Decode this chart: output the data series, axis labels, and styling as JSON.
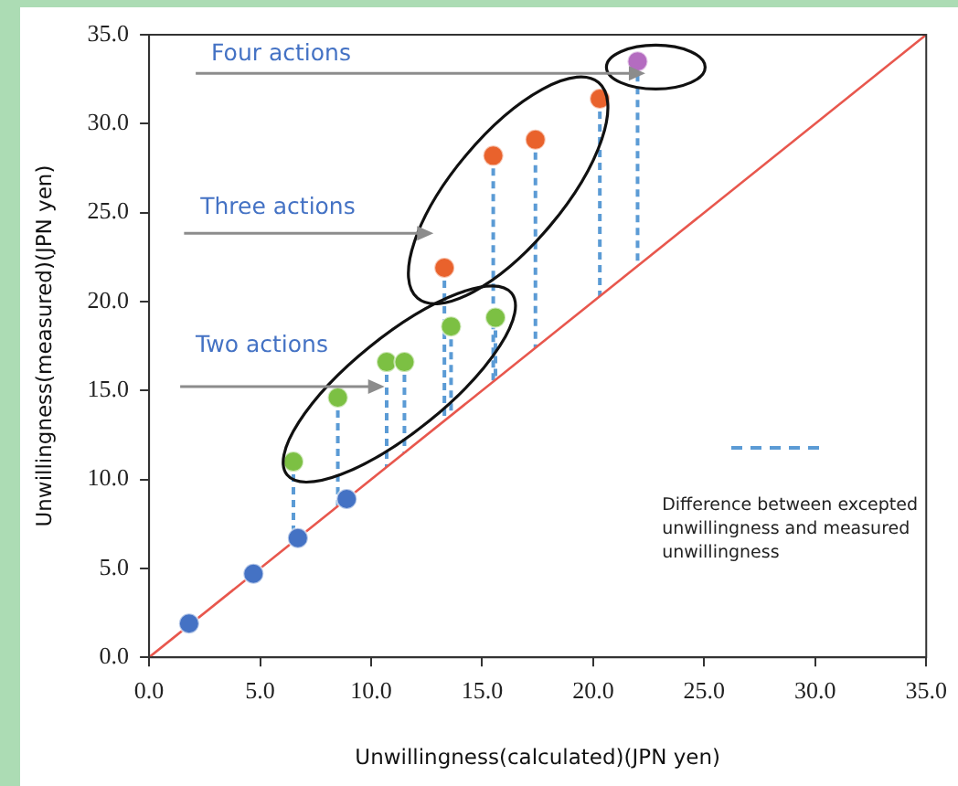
{
  "chart_data": {
    "type": "scatter",
    "xlabel": "Unwillingness(calculated)(JPN yen)",
    "ylabel": "Unwillingness(measured)(JPN yen)",
    "xlim": [
      0,
      35
    ],
    "xticks": [
      {
        "value": 0,
        "label": "0.0"
      },
      {
        "value": 5,
        "label": "5.0"
      },
      {
        "value": 10,
        "label": "10.0"
      },
      {
        "value": 15,
        "label": "15.0"
      },
      {
        "value": 20,
        "label": "20.0"
      },
      {
        "value": 25,
        "label": "25.0"
      },
      {
        "value": 30,
        "label": "30.0"
      },
      {
        "value": 35,
        "label": "35.0"
      }
    ],
    "ylim": [
      0,
      35
    ],
    "yticks": [
      {
        "value": 0,
        "label": "0.0"
      },
      {
        "value": 5,
        "label": "5.0"
      },
      {
        "value": 10,
        "label": "10.0"
      },
      {
        "value": 15,
        "label": "15.0"
      },
      {
        "value": 20,
        "label": "20.0"
      },
      {
        "value": 25,
        "label": "25.0"
      },
      {
        "value": 30,
        "label": "30.0"
      },
      {
        "value": 35,
        "label": "35.0"
      }
    ],
    "grid": false,
    "legend": "right",
    "marker": "circle",
    "annotations": [
      "Four actions",
      "Three actions",
      "Two actions"
    ],
    "series": [
      {
        "type": "line",
        "marker": "none",
        "color": "#e8574d",
        "x": [
          0,
          35
        ],
        "values": [
          0,
          35
        ]
      },
      {
        "type": "line",
        "marker": "none",
        "line_style": "dashed",
        "name": "Difference between excepted unwillingness and measured unwillingness",
        "color": "#5b9bd5",
        "x": [
          6.5,
          6.5
        ],
        "values": [
          11.0,
          6.5
        ]
      },
      {
        "type": "line",
        "marker": "none",
        "line_style": "dashed",
        "color": "#5b9bd5",
        "x": [
          8.5,
          8.5
        ],
        "values": [
          14.6,
          8.5
        ]
      },
      {
        "type": "line",
        "marker": "none",
        "line_style": "dashed",
        "color": "#5b9bd5",
        "x": [
          10.7,
          10.7
        ],
        "values": [
          16.6,
          10.7
        ]
      },
      {
        "type": "line",
        "marker": "none",
        "line_style": "dashed",
        "color": "#5b9bd5",
        "x": [
          11.5,
          11.5
        ],
        "values": [
          16.6,
          11.5
        ]
      },
      {
        "type": "line",
        "marker": "none",
        "line_style": "dashed",
        "color": "#5b9bd5",
        "x": [
          13.6,
          13.6
        ],
        "values": [
          18.6,
          13.6
        ]
      },
      {
        "type": "line",
        "marker": "none",
        "line_style": "dashed",
        "color": "#5b9bd5",
        "x": [
          15.6,
          15.6
        ],
        "values": [
          19.1,
          15.6
        ]
      },
      {
        "type": "line",
        "marker": "none",
        "line_style": "dashed",
        "color": "#5b9bd5",
        "x": [
          13.3,
          13.3
        ],
        "values": [
          21.9,
          13.3
        ]
      },
      {
        "type": "line",
        "marker": "none",
        "line_style": "dashed",
        "color": "#5b9bd5",
        "x": [
          15.5,
          15.5
        ],
        "values": [
          28.2,
          15.5
        ]
      },
      {
        "type": "line",
        "marker": "none",
        "line_style": "dashed",
        "color": "#5b9bd5",
        "x": [
          17.4,
          17.4
        ],
        "values": [
          29.1,
          17.4
        ]
      },
      {
        "type": "line",
        "marker": "none",
        "line_style": "dashed",
        "color": "#5b9bd5",
        "x": [
          20.3,
          20.3
        ],
        "values": [
          31.4,
          20.3
        ]
      },
      {
        "type": "line",
        "marker": "none",
        "line_style": "dashed",
        "color": "#5b9bd5",
        "x": [
          22.0,
          22.0
        ],
        "values": [
          33.5,
          22.0
        ]
      },
      {
        "color": "#4472c4",
        "x": [
          1.8,
          4.7,
          6.7,
          8.9
        ],
        "values": [
          1.9,
          4.7,
          6.7,
          8.9
        ]
      },
      {
        "color": "#7cc043",
        "x": [
          6.5,
          8.5,
          10.7,
          11.5,
          13.6,
          15.6
        ],
        "values": [
          11.0,
          14.6,
          16.6,
          16.6,
          18.6,
          19.1
        ]
      },
      {
        "color": "#e9622c",
        "x": [
          13.3,
          15.5,
          17.4,
          20.3
        ],
        "values": [
          21.9,
          28.2,
          29.1,
          31.4
        ]
      },
      {
        "color": "#b46cc0",
        "x": [
          22.0
        ],
        "values": [
          33.5
        ]
      }
    ]
  }
}
